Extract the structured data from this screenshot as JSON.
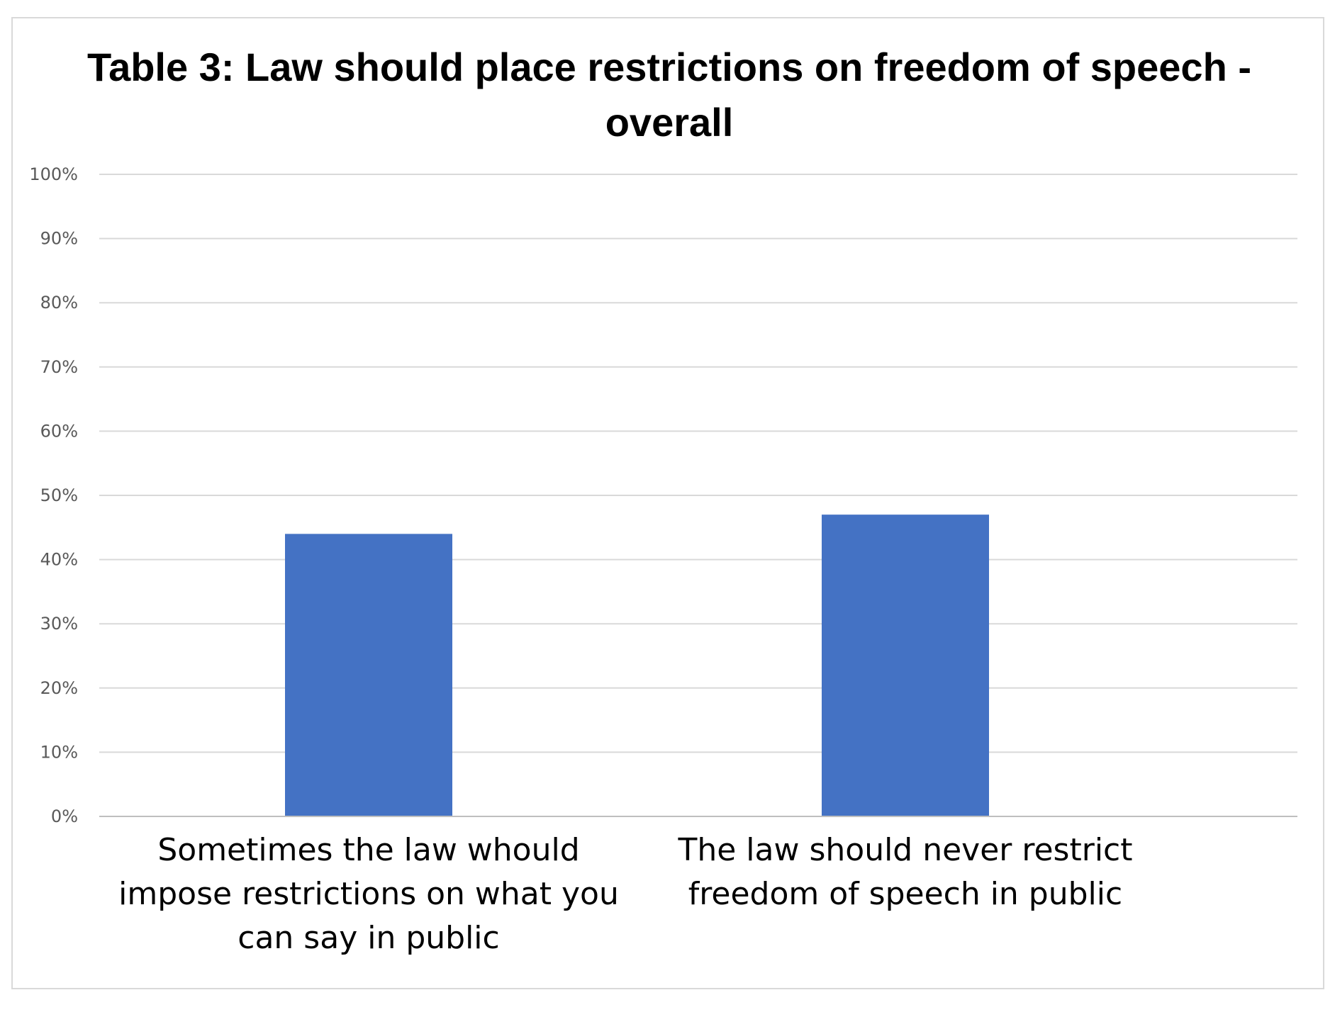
{
  "chart_data": {
    "type": "bar",
    "title_lines": [
      "Table 3: Law should place restrictions on freedom of speech -",
      "overall"
    ],
    "categories": [
      [
        "Sometimes the law whould",
        "impose restrictions on what you",
        "can say in public"
      ],
      [
        "The law should never restrict",
        "freedom of speech in public"
      ]
    ],
    "values": [
      0.44,
      0.47
    ],
    "ylim": [
      0,
      1
    ],
    "y_ticks": [
      "0%",
      "10%",
      "20%",
      "30%",
      "40%",
      "50%",
      "60%",
      "70%",
      "80%",
      "90%",
      "100%"
    ],
    "grid": true,
    "bar_color": "#4472c4",
    "legend": "none"
  }
}
